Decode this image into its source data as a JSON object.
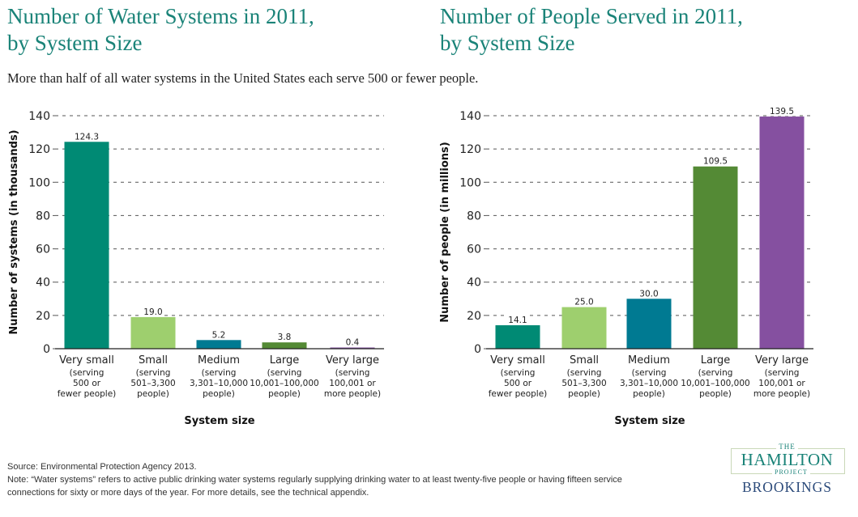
{
  "subtitle": "More than half of all water systems in the United States each serve 500 or fewer people.",
  "footnotes": {
    "source": "Source: Environmental Protection Agency 2013.",
    "note_line1": "Note: “Water systems” refers to active public drinking water systems regularly supplying drinking water to at least twenty-five people or having fifteen service",
    "note_line2": "connections for sixty or more days of the year. For more details, see the technical appendix."
  },
  "logo": {
    "the": "THE",
    "hamilton": "HAMILTON",
    "project": "PROJECT",
    "brookings": "BROOKINGS",
    "colors": {
      "hamilton": "#1a8378",
      "brookings": "#2b4a7a"
    }
  },
  "chart_data": [
    {
      "type": "bar",
      "title": "Number of Water Systems in 2011, by System Size",
      "title_lines": [
        "Number of Water Systems in 2011,",
        "by System Size"
      ],
      "xlabel": "System size",
      "ylabel": "Number of systems (in thousands)",
      "ylim": [
        0,
        140
      ],
      "yticks": [
        0,
        20,
        40,
        60,
        80,
        100,
        120,
        140
      ],
      "grid": "dashed horizontal",
      "categories": [
        "Very small",
        "Small",
        "Medium",
        "Large",
        "Very large"
      ],
      "category_details": [
        [
          "(serving",
          "500 or",
          "fewer people)"
        ],
        [
          "(serving",
          "501–3,300",
          "people)"
        ],
        [
          "(serving",
          "3,301–10,000",
          "people)"
        ],
        [
          "(serving",
          "10,001–100,000",
          "people)"
        ],
        [
          "(serving",
          "100,001 or",
          "more people)"
        ]
      ],
      "values": [
        124.3,
        19.0,
        5.2,
        3.8,
        0.4
      ],
      "value_labels": [
        "124.3",
        "19.0",
        "5.2",
        "3.8",
        "0.4"
      ],
      "colors": [
        "#008a74",
        "#9ecf6e",
        "#007a92",
        "#548a35",
        "#8550a0"
      ]
    },
    {
      "type": "bar",
      "title": "Number of People Served in 2011, by System Size",
      "title_lines": [
        "Number of People Served in 2011,",
        "by System Size"
      ],
      "xlabel": "System size",
      "ylabel": "Number of people (in millions)",
      "ylim": [
        0,
        140
      ],
      "yticks": [
        0,
        20,
        40,
        60,
        80,
        100,
        120,
        140
      ],
      "grid": "dashed horizontal",
      "categories": [
        "Very small",
        "Small",
        "Medium",
        "Large",
        "Very large"
      ],
      "category_details": [
        [
          "(serving",
          "500 or",
          "fewer people)"
        ],
        [
          "(serving",
          "501–3,300",
          "people)"
        ],
        [
          "(serving",
          "3,301–10,000",
          "people)"
        ],
        [
          "(serving",
          "10,001–100,000",
          "people)"
        ],
        [
          "(serving",
          "100,001 or",
          "more people)"
        ]
      ],
      "values": [
        14.1,
        25.0,
        30.0,
        109.5,
        139.5
      ],
      "value_labels": [
        "14.1",
        "25.0",
        "30.0",
        "109.5",
        "139.5"
      ],
      "colors": [
        "#008a74",
        "#9ecf6e",
        "#007a92",
        "#548a35",
        "#8550a0"
      ]
    }
  ]
}
